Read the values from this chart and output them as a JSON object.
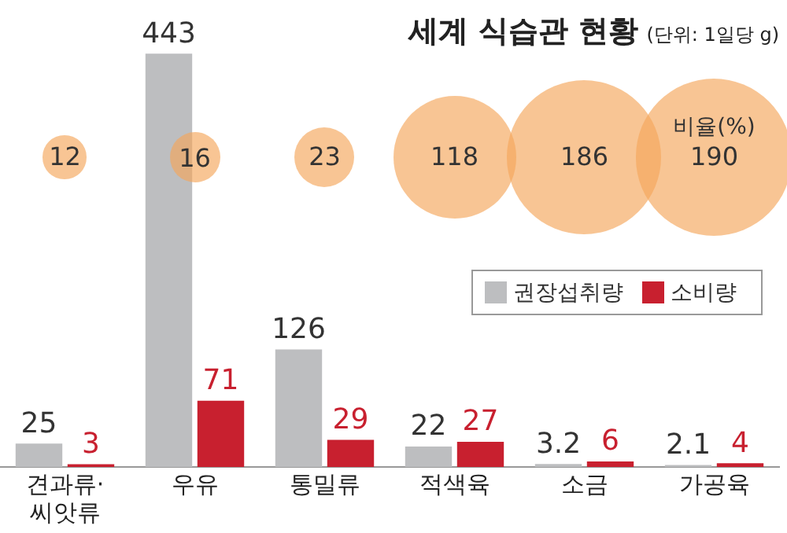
{
  "chart_data": {
    "type": "bar",
    "title": "세계 식습관 현황",
    "subtitle": "(단위: 1일당 g)",
    "categories": [
      "견과류·씨앗류",
      "우유",
      "통밀류",
      "적색육",
      "소금",
      "가공육"
    ],
    "series": [
      {
        "name": "권장섭취량",
        "color": "#bdbec0",
        "values": [
          25,
          443,
          126,
          22,
          3.2,
          2.1
        ]
      },
      {
        "name": "소비량",
        "color": "#c8202f",
        "values": [
          3,
          71,
          29,
          27,
          6,
          4
        ]
      }
    ],
    "data_labels": true,
    "legend": "right",
    "grid": false,
    "tick_labels": "x",
    "annotations": [
      "비율(%)",
      "12",
      "16",
      "23",
      "118",
      "186",
      "190"
    ]
  }
}
